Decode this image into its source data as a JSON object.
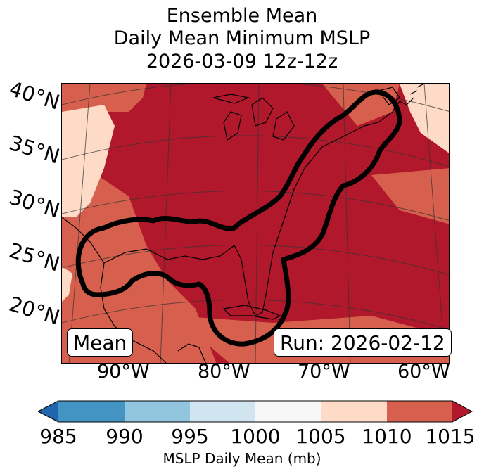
{
  "title": {
    "line1": "Ensemble Mean",
    "line2": "Daily Mean Minimum MSLP",
    "line3": "2026-03-09 12z-12z"
  },
  "map": {
    "lat_labels": [
      "40°N",
      "35°N",
      "30°N",
      "25°N",
      "20°N"
    ],
    "lon_labels": [
      "90°W",
      "80°W",
      "70°W",
      "60°W"
    ],
    "annotation_left": "Mean",
    "annotation_right": "Run: 2026-02-12"
  },
  "colorbar": {
    "ticks": [
      "985",
      "990",
      "995",
      "1000",
      "1005",
      "1010",
      "1015"
    ],
    "label": "MSLP Daily Mean (mb)",
    "colors": [
      "#2166ac",
      "#4393c3",
      "#92c5de",
      "#d1e5f0",
      "#f7f7f7",
      "#fddbc7",
      "#d6604d",
      "#b2182b"
    ]
  }
}
